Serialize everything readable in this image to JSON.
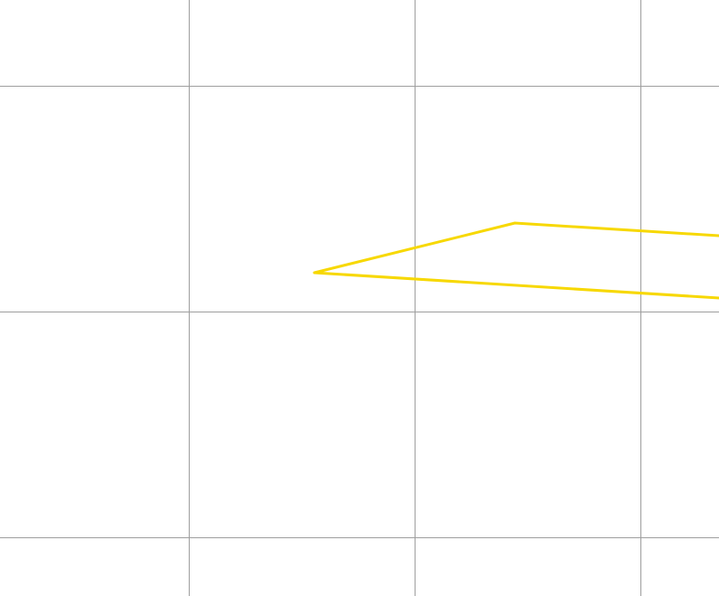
{
  "map": {
    "background_color": "#ffffff",
    "grid": {
      "visible": true,
      "line_color": "#9e9e9e"
    },
    "feature": {
      "kind": "polygon-outline",
      "stroke_color": "#f7d800",
      "fill": "none"
    }
  }
}
